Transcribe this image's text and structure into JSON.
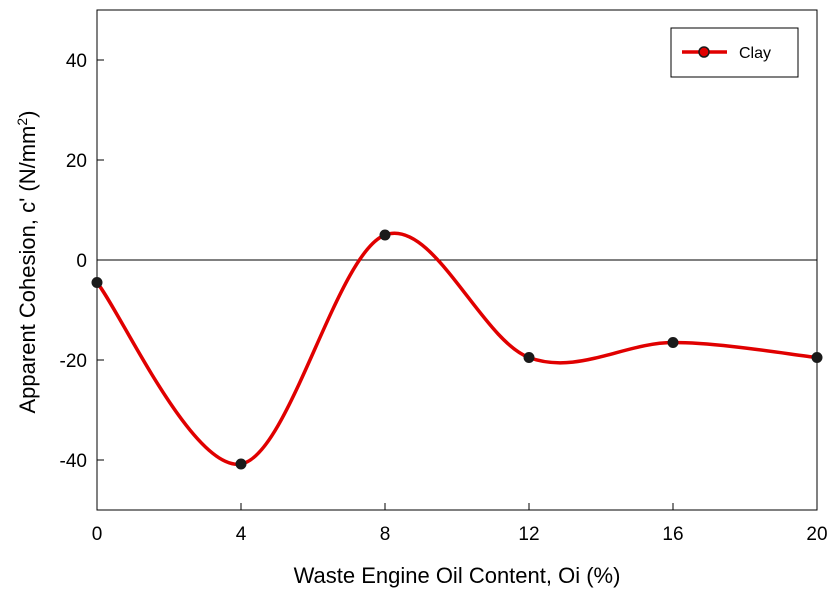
{
  "chart_data": {
    "type": "line",
    "x": [
      0,
      4,
      8,
      12,
      16,
      20
    ],
    "series": [
      {
        "name": "Clay",
        "values": [
          -4.5,
          -40.8,
          5.0,
          -19.5,
          -16.5,
          -19.5
        ],
        "color": "#e00000",
        "marker_color": "#1a1a1a"
      }
    ],
    "xlabel": "Waste Engine Oil Content, Oi (%)",
    "ylabel_main": "Apparent Cohesion, c' (N/mm",
    "ylabel_sup": "2",
    "ylabel_end": ")",
    "xlim": [
      0,
      20
    ],
    "ylim": [
      -50,
      50
    ],
    "x_ticks": [
      "0",
      "4",
      "8",
      "12",
      "16",
      "20"
    ],
    "y_ticks": [
      "-40",
      "-20",
      "0",
      "20",
      "40"
    ],
    "y_tick_values": [
      -40,
      -20,
      0,
      20,
      40
    ],
    "zero_line": true,
    "legend_position": "top-right",
    "grid": false
  }
}
